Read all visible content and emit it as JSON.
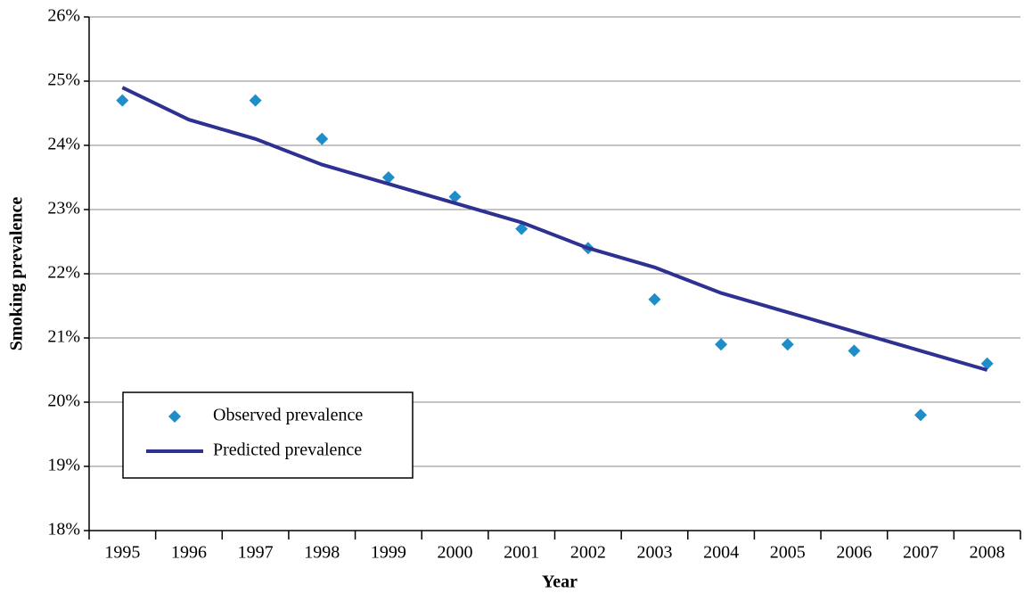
{
  "chart_data": {
    "type": "line",
    "x_label": "Year",
    "y_label": "Smoking prevalence",
    "categories": [
      "1995",
      "1996",
      "1997",
      "1998",
      "1999",
      "2000",
      "2001",
      "2002",
      "2003",
      "2004",
      "2005",
      "2006",
      "2007",
      "2008"
    ],
    "series": [
      {
        "name": "Observed prevalence",
        "type": "scatter",
        "color": "#1f8dc8",
        "values": [
          24.7,
          null,
          24.7,
          24.1,
          23.5,
          23.2,
          22.7,
          22.4,
          21.6,
          20.9,
          20.9,
          20.8,
          19.8,
          20.6
        ]
      },
      {
        "name": "Predicted prevalence",
        "type": "line",
        "color": "#2e3192",
        "values": [
          24.9,
          24.4,
          24.1,
          23.7,
          23.4,
          23.1,
          22.8,
          22.4,
          22.1,
          21.7,
          21.4,
          21.1,
          20.8,
          20.5
        ]
      }
    ],
    "ylim": [
      18,
      26
    ],
    "yticks": [
      {
        "value": 18,
        "label": "18%"
      },
      {
        "value": 19,
        "label": "19%"
      },
      {
        "value": 20,
        "label": "20%"
      },
      {
        "value": 21,
        "label": "21%"
      },
      {
        "value": 22,
        "label": "22%"
      },
      {
        "value": 23,
        "label": "23%"
      },
      {
        "value": 24,
        "label": "24%"
      },
      {
        "value": 25,
        "label": "25%"
      },
      {
        "value": 26,
        "label": "26%"
      }
    ],
    "grid": true,
    "legend": "lower left"
  }
}
